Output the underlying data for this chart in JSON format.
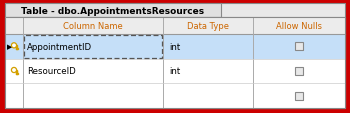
{
  "title": "Table - dbo.AppointmentsResources",
  "columns": [
    "Column Name",
    "Data Type",
    "Allow Nulls"
  ],
  "rows": [
    {
      "name": "AppointmentID",
      "type": "int",
      "selected": true,
      "arrow": true
    },
    {
      "name": "ResourceID",
      "type": "int",
      "selected": false,
      "arrow": false
    },
    {
      "name": "",
      "type": "",
      "selected": false,
      "arrow": false
    }
  ],
  "border_color": "#cc0000",
  "header_bg": "#ececec",
  "row_selected_bg": "#c5dff8",
  "row_normal_bg": "#f4f4f4",
  "col_header_color": "#cc6600",
  "title_color": "#000000",
  "grid_color": "#b0b0b0",
  "tab_bg": "#e0e0e0",
  "title_bg": "#e8e8e8",
  "key_color": "#d4a000",
  "arrow_color": "#000000"
}
